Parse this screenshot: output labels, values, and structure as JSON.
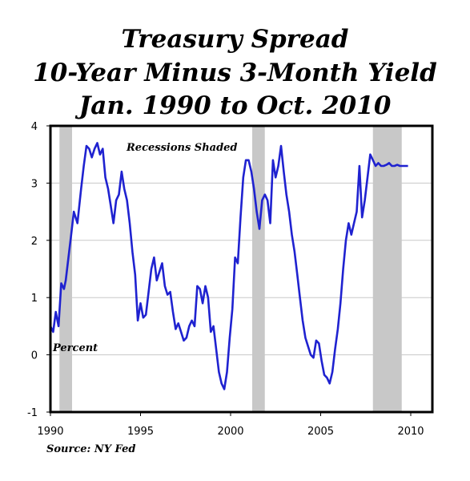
{
  "chart_data": {
    "type": "line",
    "title_lines": [
      "Treasury Spread",
      "10-Year Minus 3-Month Yield",
      "Jan. 1990 to Oct. 2010"
    ],
    "ylabel": "Percent",
    "annotation": "Recessions Shaded",
    "source": "Source: NY Fed",
    "xlim": [
      1990,
      2011.2
    ],
    "ylim": [
      -1,
      4
    ],
    "xticks": [
      1990,
      1995,
      2000,
      2005,
      2010
    ],
    "yticks": [
      -1,
      0,
      1,
      2,
      3,
      4
    ],
    "grid": "horizontal",
    "line_color": "#1f22d0",
    "recession_color": "#c8c8c8",
    "recessions": [
      [
        1990.5,
        1991.2
      ],
      [
        2001.2,
        2001.9
      ],
      [
        2007.9,
        2009.5
      ]
    ],
    "series": [
      {
        "x": [
          1990.0,
          1990.15,
          1990.3,
          1990.45,
          1990.6,
          1990.75,
          1990.85,
          1991.0,
          1991.15,
          1991.3,
          1991.5,
          1991.7,
          1991.85,
          1992.0,
          1992.15,
          1992.3,
          1992.45,
          1992.6,
          1992.75,
          1992.9,
          1993.05,
          1993.2,
          1993.35,
          1993.5,
          1993.65,
          1993.8,
          1993.95,
          1994.1,
          1994.25,
          1994.4,
          1994.55,
          1994.7,
          1994.85,
          1995.0,
          1995.15,
          1995.3,
          1995.45,
          1995.6,
          1995.75,
          1995.9,
          1996.05,
          1996.2,
          1996.35,
          1996.5,
          1996.65,
          1996.8,
          1996.95,
          1997.1,
          1997.25,
          1997.4,
          1997.55,
          1997.7,
          1997.85,
          1998.0,
          1998.15,
          1998.3,
          1998.45,
          1998.6,
          1998.75,
          1998.9,
          1999.05,
          1999.2,
          1999.35,
          1999.5,
          1999.65,
          1999.8,
          1999.95,
          2000.1,
          2000.25,
          2000.4,
          2000.55,
          2000.7,
          2000.85,
          2001.0,
          2001.15,
          2001.3,
          2001.45,
          2001.6,
          2001.75,
          2001.9,
          2002.05,
          2002.2,
          2002.35,
          2002.5,
          2002.65,
          2002.8,
          2002.95,
          2003.1,
          2003.25,
          2003.4,
          2003.55,
          2003.7,
          2003.85,
          2004.0,
          2004.15,
          2004.3,
          2004.45,
          2004.6,
          2004.75,
          2004.9,
          2005.05,
          2005.2,
          2005.35,
          2005.5,
          2005.65,
          2005.8,
          2005.95,
          2006.1,
          2006.25,
          2006.4,
          2006.55,
          2006.7,
          2006.85,
          2007.0,
          2007.15,
          2007.3,
          2007.45,
          2007.6,
          2007.75,
          2007.9,
          2008.05,
          2008.2,
          2008.35,
          2008.5,
          2008.65,
          2008.8,
          2008.95,
          2009.1,
          2009.25,
          2009.4,
          2009.55,
          2009.7,
          2009.85
        ],
        "y": [
          0.5,
          0.4,
          0.75,
          0.5,
          1.25,
          1.15,
          1.3,
          1.7,
          2.1,
          2.5,
          2.3,
          2.9,
          3.3,
          3.65,
          3.6,
          3.45,
          3.6,
          3.7,
          3.5,
          3.6,
          3.1,
          2.9,
          2.6,
          2.3,
          2.7,
          2.8,
          3.2,
          2.9,
          2.7,
          2.3,
          1.8,
          1.4,
          0.6,
          0.9,
          0.65,
          0.7,
          1.1,
          1.5,
          1.7,
          1.3,
          1.45,
          1.6,
          1.2,
          1.05,
          1.1,
          0.75,
          0.45,
          0.55,
          0.4,
          0.25,
          0.3,
          0.5,
          0.6,
          0.5,
          1.2,
          1.15,
          0.9,
          1.2,
          1.0,
          0.4,
          0.5,
          0.1,
          -0.3,
          -0.5,
          -0.6,
          -0.3,
          0.3,
          0.8,
          1.7,
          1.6,
          2.4,
          3.1,
          3.4,
          3.4,
          3.2,
          2.9,
          2.5,
          2.2,
          2.7,
          2.8,
          2.7,
          2.3,
          3.4,
          3.1,
          3.3,
          3.65,
          3.2,
          2.8,
          2.5,
          2.1,
          1.8,
          1.4,
          1.0,
          0.6,
          0.3,
          0.15,
          0.0,
          -0.05,
          0.25,
          0.2,
          -0.1,
          -0.35,
          -0.4,
          -0.5,
          -0.3,
          0.1,
          0.45,
          0.9,
          1.5,
          2.0,
          2.3,
          2.1,
          2.3,
          2.5,
          3.3,
          2.4,
          2.7,
          3.1,
          3.5,
          3.4,
          3.3,
          3.35,
          3.3,
          3.3,
          3.32,
          3.35,
          3.3,
          3.3,
          3.32,
          3.3,
          3.3,
          3.3,
          3.3
        ]
      }
    ]
  }
}
